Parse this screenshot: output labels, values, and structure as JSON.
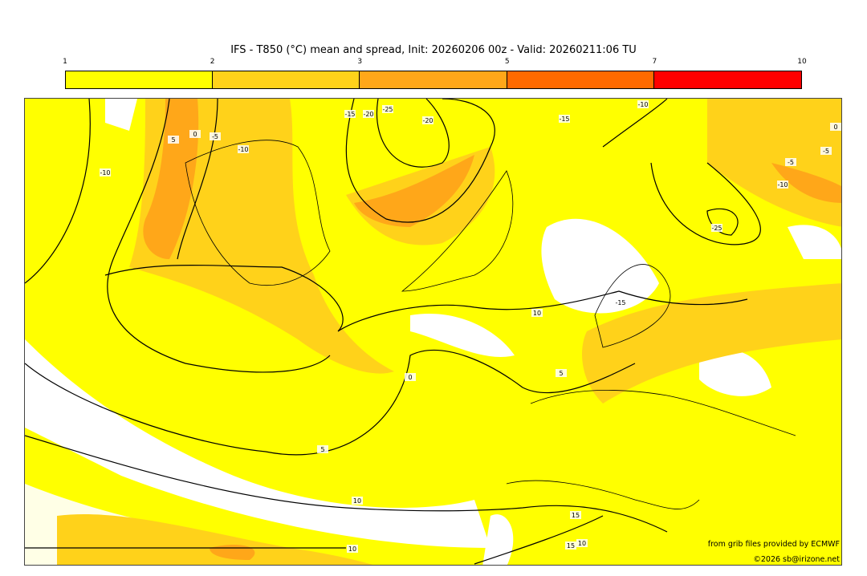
{
  "title": "IFS - T850 (°C) mean and spread, Init: 20260206 00z - Valid: 20260211:06 TU",
  "colorbar": {
    "ticks": [
      "1",
      "2",
      "3",
      "5",
      "7",
      "10"
    ],
    "tick_values": [
      1,
      2,
      3,
      5,
      7,
      10
    ],
    "colors": [
      "#ffff00",
      "#ffd21a",
      "#ffa719",
      "#ff6a00",
      "#ff0000"
    ]
  },
  "contour_labels": [
    "5",
    "0",
    "-5",
    "-10",
    "-15",
    "-20",
    "-25",
    "-20",
    "-15",
    "-10",
    "-10",
    "-5",
    "0",
    "5",
    "10",
    "-15",
    "-25",
    "-10",
    "-5",
    "0",
    "5",
    "10",
    "15",
    "10",
    "15",
    "10"
  ],
  "credits": {
    "line1": "from grib files provided by ECMWF",
    "line2": "©2026 sb@irizone.net"
  }
}
